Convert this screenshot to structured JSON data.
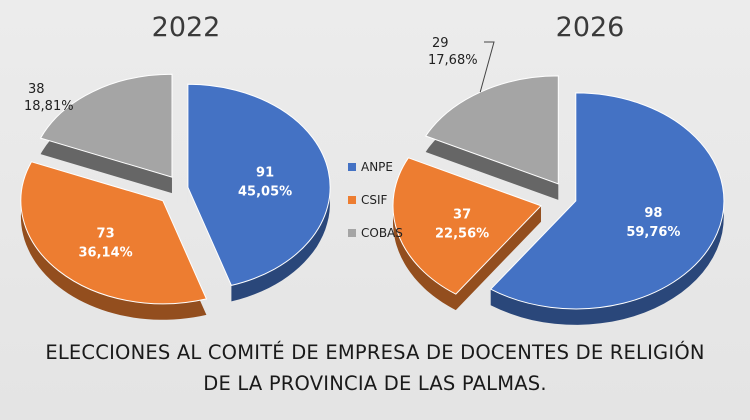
{
  "chart_data": {
    "type": "pie",
    "legend": {
      "placement": "center",
      "entries": [
        "ANPE",
        "CSIF",
        "COBAS"
      ]
    },
    "colors": {
      "ANPE": "#4472c4",
      "CSIF": "#ed7d31",
      "COBAS": "#a5a5a5"
    },
    "title_lines": [
      "ELECCIONES AL COMITÉ DE EMPRESA DE DOCENTES DE RELIGIÓN",
      "DE LA PROVINCIA DE LAS PALMAS."
    ],
    "pies": [
      {
        "title": "2022",
        "slices": [
          {
            "category": "ANPE",
            "value": 91,
            "percent": "45,05%"
          },
          {
            "category": "CSIF",
            "value": 73,
            "percent": "36,14%"
          },
          {
            "category": "COBAS",
            "value": 38,
            "percent": "18,81%"
          }
        ]
      },
      {
        "title": "2026",
        "slices": [
          {
            "category": "ANPE",
            "value": 98,
            "percent": "59,76%"
          },
          {
            "category": "CSIF",
            "value": 37,
            "percent": "22,56%"
          },
          {
            "category": "COBAS",
            "value": 29,
            "percent": "17,68%"
          }
        ]
      }
    ]
  }
}
